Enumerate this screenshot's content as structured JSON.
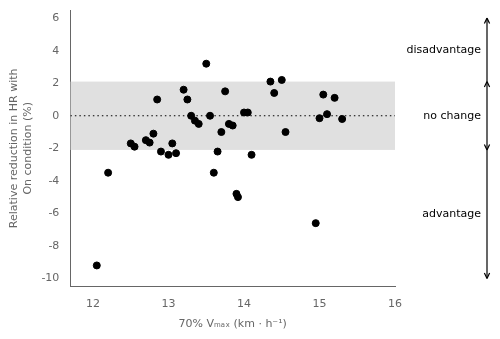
{
  "chart_data": {
    "type": "scatter",
    "x": [
      12.05,
      12.2,
      12.5,
      12.55,
      12.7,
      12.75,
      12.8,
      12.85,
      12.9,
      13.0,
      13.05,
      13.1,
      13.2,
      13.25,
      13.3,
      13.35,
      13.4,
      13.5,
      13.55,
      13.6,
      13.65,
      13.7,
      13.75,
      13.8,
      13.85,
      13.9,
      13.92,
      14.0,
      14.05,
      14.1,
      14.35,
      14.4,
      14.5,
      14.55,
      14.95,
      15.0,
      15.05,
      15.1,
      15.2,
      15.3
    ],
    "values": [
      -9.2,
      -3.5,
      -1.7,
      -1.9,
      -1.5,
      -1.65,
      -1.1,
      1.0,
      -2.2,
      -2.4,
      -1.7,
      -2.3,
      1.6,
      1.0,
      0.0,
      -0.3,
      -0.5,
      3.2,
      0.0,
      -3.5,
      -2.2,
      -1.0,
      1.5,
      -0.5,
      -0.6,
      -4.8,
      -5.0,
      0.2,
      0.2,
      -2.4,
      2.1,
      1.4,
      2.2,
      -1.0,
      -6.6,
      -0.15,
      1.3,
      0.1,
      1.1,
      -0.2
    ],
    "color": "#000000",
    "marker": "circle",
    "xlim": [
      11.7,
      16.0
    ],
    "ylim": [
      -10.5,
      6.5
    ],
    "xticks": [
      12,
      13,
      14,
      15,
      16
    ],
    "yticks": [
      -10,
      -8,
      -6,
      -4,
      -2,
      0,
      2,
      4,
      6
    ],
    "xlabel": "70% Vₘₐₓ (km · h⁻¹)",
    "ylabel": "Relative reduction in HR with\nOn condition (%)",
    "grid": false,
    "legend": "none",
    "band": {
      "lower": -2.1,
      "upper": 2.1,
      "color": "#e0e0e0"
    },
    "hline": {
      "value": 0,
      "color": "#000000",
      "line_style": "dotted"
    },
    "annotations": [
      {
        "text": "disadvantage",
        "from": 2.1,
        "to": 6,
        "arrow": "->"
      },
      {
        "text": "no change",
        "from": -2.1,
        "to": 2.1,
        "arrow": "<->"
      },
      {
        "text": "advantage",
        "from": -2.1,
        "to": -10,
        "arrow": "->"
      }
    ]
  }
}
